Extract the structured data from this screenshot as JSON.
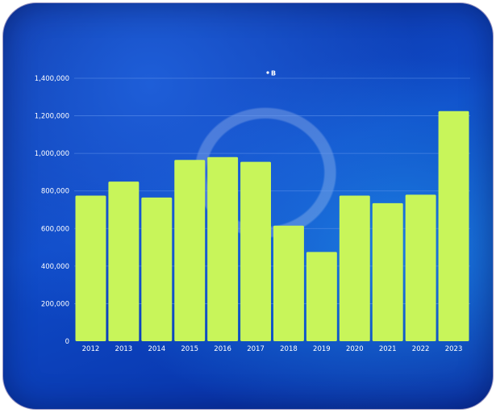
{
  "chart_data": {
    "type": "bar",
    "categories": [
      "2012",
      "2013",
      "2014",
      "2015",
      "2016",
      "2017",
      "2018",
      "2019",
      "2020",
      "2021",
      "2022",
      "2023"
    ],
    "series": [
      {
        "name": "B",
        "values": [
          775000,
          850000,
          765000,
          965000,
          980000,
          955000,
          615000,
          475000,
          775000,
          735000,
          780000,
          1225000
        ]
      }
    ],
    "y_ticks": [
      "0",
      "200,000",
      "400,000",
      "600,000",
      "800,000",
      "1,000,000",
      "1,200,000",
      "1,400,000"
    ],
    "ylim": [
      0,
      1400000
    ],
    "grid": true,
    "legend_position": "top-center",
    "colors": {
      "bar": "#c8f55a",
      "gridline": "#6f9ff0",
      "text": "#ffffff",
      "legend_marker": "#ffffff"
    }
  }
}
